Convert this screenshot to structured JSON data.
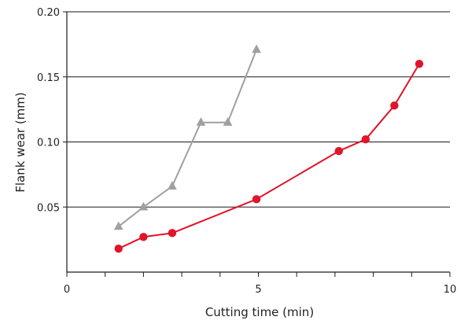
{
  "chart_data": {
    "type": "line",
    "xlabel": "Cutting time (min)",
    "ylabel": "Flank wear (mm)",
    "xlim": [
      0,
      10
    ],
    "ylim": [
      0,
      0.2
    ],
    "x_ticks": [
      0,
      5,
      10
    ],
    "x_tick_labels": [
      "0",
      "5",
      "10"
    ],
    "x_minor_ticks": [
      1,
      2,
      3,
      4,
      6,
      7,
      8,
      9
    ],
    "y_ticks": [
      0.05,
      0.1,
      0.15,
      0.2
    ],
    "y_tick_labels": [
      "0.05",
      "0.10",
      "0.15",
      "0.20"
    ],
    "grid": "horizontal",
    "series": [
      {
        "marker": "triangle",
        "color": "#a0a0a0",
        "points": [
          [
            1.35,
            0.035
          ],
          [
            2.0,
            0.05
          ],
          [
            2.75,
            0.066
          ],
          [
            3.5,
            0.115
          ],
          [
            4.2,
            0.115
          ],
          [
            4.95,
            0.171
          ]
        ]
      },
      {
        "marker": "circle",
        "color": "#e0142a",
        "points": [
          [
            1.35,
            0.018
          ],
          [
            2.0,
            0.027
          ],
          [
            2.75,
            0.03
          ],
          [
            4.95,
            0.056
          ],
          [
            7.1,
            0.093
          ],
          [
            7.8,
            0.102
          ],
          [
            8.55,
            0.128
          ],
          [
            9.2,
            0.16
          ]
        ]
      }
    ]
  }
}
